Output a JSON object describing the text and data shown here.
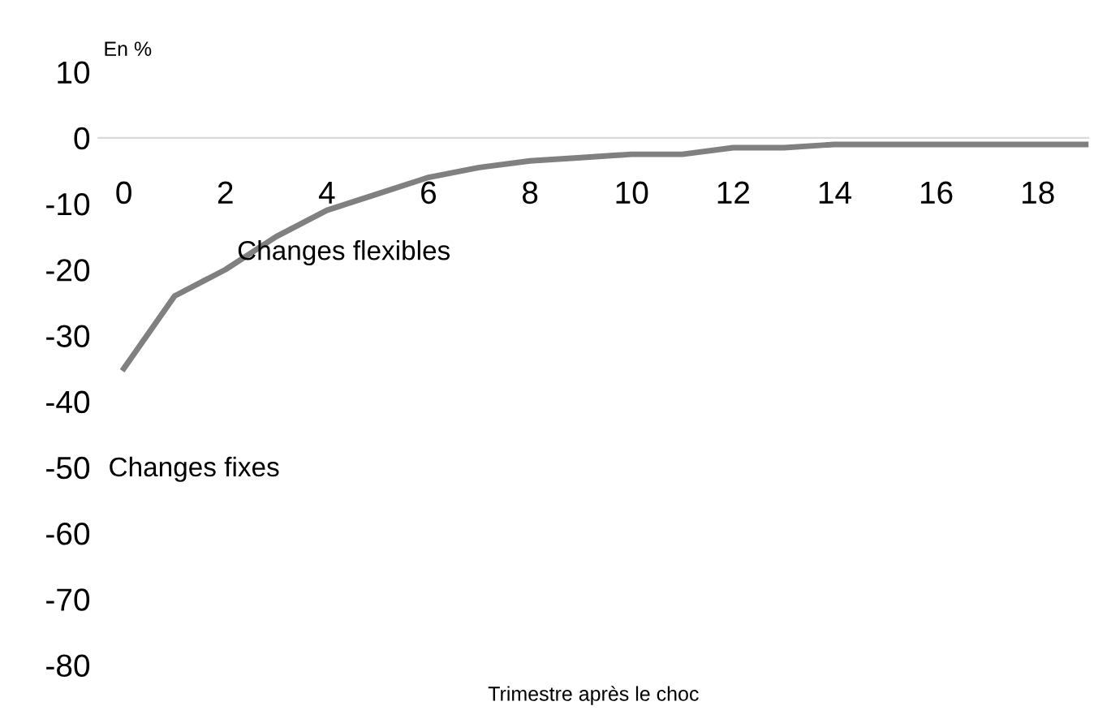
{
  "chart_data": {
    "type": "line",
    "ylabel": "En %",
    "xlabel": "Trimestre après le choc",
    "x": [
      0,
      1,
      2,
      3,
      4,
      5,
      6,
      7,
      8,
      9,
      10,
      11,
      12,
      13,
      14,
      15,
      16,
      17,
      18,
      19
    ],
    "series": [
      {
        "color": "#808080",
        "values": [
          -35,
          -24,
          -20,
          -15,
          -11,
          -8.5,
          -6,
          -4.5,
          -3.5,
          -3,
          -2.5,
          -2.5,
          -1.5,
          -1.5,
          -1,
          -1,
          -1,
          -1,
          -1,
          -1
        ]
      }
    ],
    "xlim": [
      -0.5,
      19
    ],
    "ylim": [
      -80,
      10
    ],
    "xticks": [
      0,
      2,
      4,
      6,
      8,
      10,
      12,
      14,
      16,
      18
    ],
    "yticks": [
      -80,
      -70,
      -60,
      -50,
      -40,
      -30,
      -20,
      -10,
      0,
      10
    ],
    "grid": false,
    "legend": false,
    "marker": "none",
    "line_style": "solid",
    "annotations": [
      "Changes flexibles",
      "Changes fixes"
    ]
  }
}
